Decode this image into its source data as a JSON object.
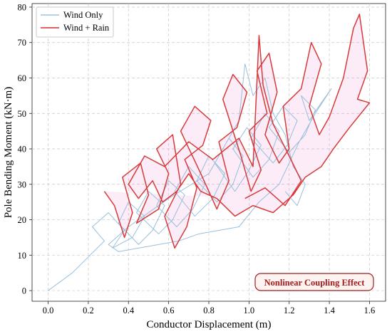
{
  "chart_data": {
    "type": "line",
    "title": "",
    "xlabel": "Conductor Displacement (m)",
    "ylabel": "Pole Bending Moment (kN·m)",
    "xlim": [
      -0.08,
      1.68
    ],
    "ylim": [
      -3,
      81
    ],
    "xticks": [
      0.0,
      0.2,
      0.4,
      0.6,
      0.8,
      1.0,
      1.2,
      1.4,
      1.6
    ],
    "xtick_labels": [
      "0.0",
      "0.2",
      "0.4",
      "0.6",
      "0.8",
      "1.0",
      "1.2",
      "1.4",
      "1.6"
    ],
    "yticks": [
      0,
      10,
      20,
      30,
      40,
      50,
      60,
      70,
      80
    ],
    "ytick_labels": [
      "0",
      "10",
      "20",
      "30",
      "40",
      "50",
      "60",
      "70",
      "80"
    ],
    "grid": true,
    "legend_position": "top-left",
    "series": [
      {
        "name": "Wind Only",
        "color": "#8fb8d8",
        "points": [
          [
            0.0,
            0.0
          ],
          [
            0.12,
            5.0
          ],
          [
            0.2,
            9.5
          ],
          [
            0.28,
            14.0
          ],
          [
            0.22,
            18.0
          ],
          [
            0.3,
            22.0
          ],
          [
            0.38,
            17.0
          ],
          [
            0.32,
            12.0
          ],
          [
            0.42,
            15.0
          ],
          [
            0.48,
            21.0
          ],
          [
            0.4,
            25.0
          ],
          [
            0.35,
            19.0
          ],
          [
            0.45,
            13.0
          ],
          [
            0.52,
            17.0
          ],
          [
            0.58,
            24.0
          ],
          [
            0.5,
            28.0
          ],
          [
            0.44,
            22.0
          ],
          [
            0.55,
            16.0
          ],
          [
            0.62,
            20.0
          ],
          [
            0.68,
            27.0
          ],
          [
            0.6,
            31.0
          ],
          [
            0.54,
            24.0
          ],
          [
            0.64,
            18.0
          ],
          [
            0.72,
            23.0
          ],
          [
            0.78,
            30.0
          ],
          [
            0.7,
            35.0
          ],
          [
            0.63,
            28.0
          ],
          [
            0.73,
            21.0
          ],
          [
            0.82,
            26.0
          ],
          [
            0.88,
            33.0
          ],
          [
            0.8,
            38.0
          ],
          [
            0.74,
            31.0
          ],
          [
            0.84,
            25.0
          ],
          [
            0.92,
            30.0
          ],
          [
            0.97,
            38.0
          ],
          [
            0.9,
            43.0
          ],
          [
            0.83,
            36.0
          ],
          [
            0.93,
            28.0
          ],
          [
            1.0,
            34.0
          ],
          [
            1.06,
            41.0
          ],
          [
            0.99,
            46.0
          ],
          [
            0.92,
            40.0
          ],
          [
            1.02,
            32.0
          ],
          [
            1.1,
            37.0
          ],
          [
            1.15,
            45.0
          ],
          [
            1.08,
            50.0
          ],
          [
            1.01,
            43.0
          ],
          [
            1.12,
            36.0
          ],
          [
            1.19,
            41.0
          ],
          [
            1.24,
            48.0
          ],
          [
            1.17,
            52.0
          ],
          [
            1.1,
            46.0
          ],
          [
            1.2,
            39.0
          ],
          [
            1.28,
            44.0
          ],
          [
            1.33,
            51.0
          ],
          [
            1.26,
            55.0
          ],
          [
            1.3,
            48.0
          ],
          [
            1.36,
            53.0
          ],
          [
            1.41,
            57.0
          ],
          [
            1.33,
            50.0
          ],
          [
            1.25,
            42.0
          ],
          [
            1.15,
            30.0
          ],
          [
            1.05,
            25.0
          ],
          [
            0.95,
            18.0
          ],
          [
            0.85,
            17.0
          ],
          [
            0.75,
            16.0
          ],
          [
            0.65,
            14.0
          ],
          [
            0.55,
            13.0
          ],
          [
            0.45,
            12.0
          ],
          [
            0.35,
            11.0
          ],
          [
            0.3,
            13.0
          ],
          [
            0.4,
            18.0
          ],
          [
            0.6,
            26.0
          ],
          [
            0.8,
            33.0
          ],
          [
            0.95,
            48.0
          ],
          [
            0.98,
            64.0
          ],
          [
            1.02,
            55.0
          ],
          [
            1.08,
            60.0
          ],
          [
            1.12,
            50.0
          ],
          [
            1.18,
            44.0
          ],
          [
            1.22,
            35.0
          ],
          [
            1.28,
            30.0
          ],
          [
            1.24,
            24.0
          ],
          [
            1.18,
            28.0
          ]
        ]
      },
      {
        "name": "Wind + Rain",
        "color": "#d62f2f",
        "points": [
          [
            0.28,
            28.0
          ],
          [
            0.33,
            24.0
          ],
          [
            0.38,
            15.0
          ],
          [
            0.42,
            22.0
          ],
          [
            0.37,
            32.0
          ],
          [
            0.46,
            36.0
          ],
          [
            0.5,
            27.0
          ],
          [
            0.44,
            19.0
          ],
          [
            0.55,
            23.0
          ],
          [
            0.6,
            33.0
          ],
          [
            0.54,
            40.0
          ],
          [
            0.62,
            44.0
          ],
          [
            0.66,
            30.0
          ],
          [
            0.58,
            21.0
          ],
          [
            0.63,
            12.0
          ],
          [
            0.69,
            18.0
          ],
          [
            0.74,
            29.0
          ],
          [
            0.68,
            37.0
          ],
          [
            0.77,
            41.0
          ],
          [
            0.81,
            48.0
          ],
          [
            0.73,
            52.0
          ],
          [
            0.66,
            45.0
          ],
          [
            0.76,
            33.0
          ],
          [
            0.84,
            23.0
          ],
          [
            0.9,
            31.0
          ],
          [
            0.85,
            42.0
          ],
          [
            0.94,
            46.0
          ],
          [
            0.99,
            56.0
          ],
          [
            0.92,
            61.0
          ],
          [
            0.87,
            54.0
          ],
          [
            0.96,
            38.0
          ],
          [
            1.01,
            28.0
          ],
          [
            1.06,
            34.0
          ],
          [
            1.0,
            45.0
          ],
          [
            1.09,
            50.0
          ],
          [
            1.04,
            62.0
          ],
          [
            1.1,
            67.0
          ],
          [
            1.14,
            56.0
          ],
          [
            1.08,
            44.0
          ],
          [
            1.15,
            36.0
          ],
          [
            1.2,
            40.0
          ],
          [
            1.17,
            52.0
          ],
          [
            1.26,
            57.0
          ],
          [
            1.31,
            70.0
          ],
          [
            1.36,
            64.0
          ],
          [
            1.3,
            52.0
          ],
          [
            1.35,
            44.0
          ],
          [
            1.4,
            49.0
          ],
          [
            1.47,
            60.0
          ],
          [
            1.52,
            74.0
          ],
          [
            1.55,
            78.0
          ],
          [
            1.59,
            62.0
          ],
          [
            1.54,
            54.0
          ],
          [
            1.6,
            53.0
          ],
          [
            1.5,
            46.0
          ],
          [
            1.42,
            40.0
          ],
          [
            1.36,
            35.0
          ],
          [
            1.28,
            32.0
          ],
          [
            1.22,
            27.0
          ],
          [
            1.12,
            22.0
          ],
          [
            1.02,
            24.0
          ],
          [
            0.93,
            21.0
          ],
          [
            0.84,
            26.0
          ],
          [
            0.76,
            28.0
          ],
          [
            0.7,
            33.0
          ],
          [
            0.64,
            28.0
          ],
          [
            0.57,
            25.0
          ],
          [
            0.52,
            31.0
          ],
          [
            0.45,
            26.0
          ],
          [
            0.4,
            30.0
          ],
          [
            0.48,
            38.0
          ],
          [
            0.58,
            35.0
          ],
          [
            0.7,
            42.0
          ],
          [
            0.82,
            37.0
          ],
          [
            0.95,
            43.0
          ],
          [
            1.02,
            35.0
          ],
          [
            1.05,
            72.0
          ],
          [
            1.07,
            58.0
          ],
          [
            1.12,
            47.0
          ],
          [
            1.2,
            38.0
          ],
          [
            1.26,
            31.0
          ],
          [
            1.18,
            24.0
          ],
          [
            1.08,
            29.0
          ],
          [
            0.98,
            26.0
          ]
        ]
      }
    ],
    "annotation": "Nonlinear Coupling Effect",
    "annotation_color": "#a51c1c"
  }
}
